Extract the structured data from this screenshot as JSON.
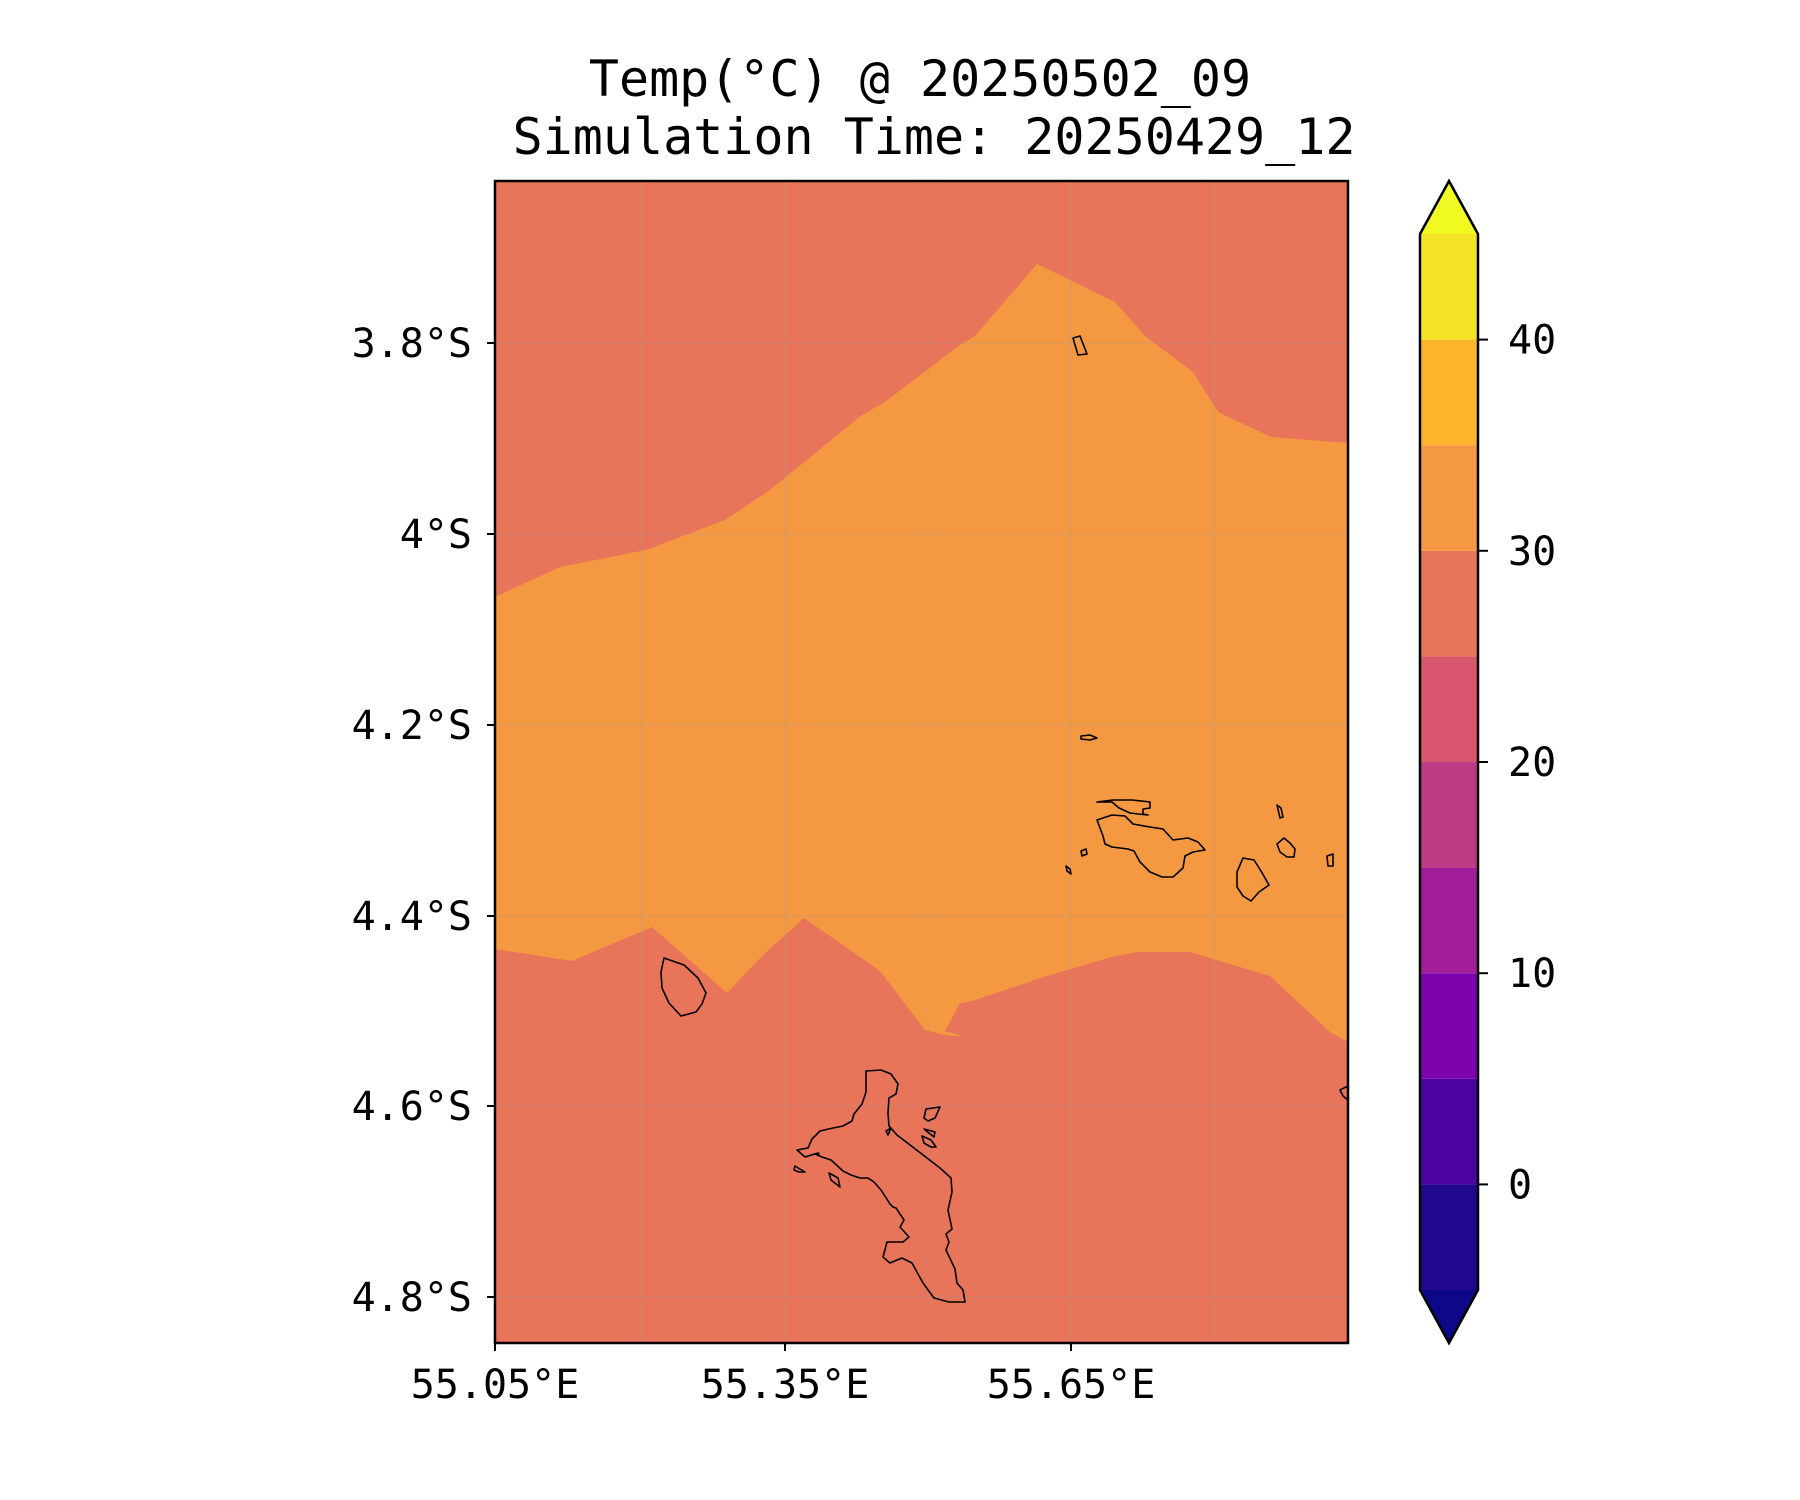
{
  "title": {
    "line1": "Temp(°C) @ 20250502_09",
    "line2": "Simulation Time: 20250429_12"
  },
  "map": {
    "variable": "Temp(°C)",
    "lon_range": [
      55.05,
      55.95
    ],
    "lat_range": [
      -3.63,
      -4.85
    ],
    "grid": true,
    "x_ticks": [
      "55.05°E",
      "55.35°E",
      "55.65°E"
    ],
    "y_ticks": [
      "3.8°S",
      "4°S",
      "4.2°S",
      "4.4°S",
      "4.6°S",
      "4.8°S"
    ],
    "region_labels": [
      {
        "band": "25-30",
        "color": "#e8755a"
      },
      {
        "band": "30-35",
        "color": "#f59842"
      }
    ]
  },
  "colorbar": {
    "ticks": [
      "40",
      "30",
      "20",
      "10",
      "0"
    ],
    "levels": [
      -5,
      0,
      5,
      10,
      15,
      20,
      25,
      30,
      35,
      40,
      45
    ],
    "extend": "both",
    "colors": [
      "#22078f",
      "#4b04a0",
      "#7c03ad",
      "#a21d9a",
      "#bf3a84",
      "#d8566d",
      "#e8755a",
      "#f59842",
      "#fcb42d",
      "#f3e526"
    ],
    "under_color": "#0d0887",
    "over_color": "#f0f921"
  }
}
